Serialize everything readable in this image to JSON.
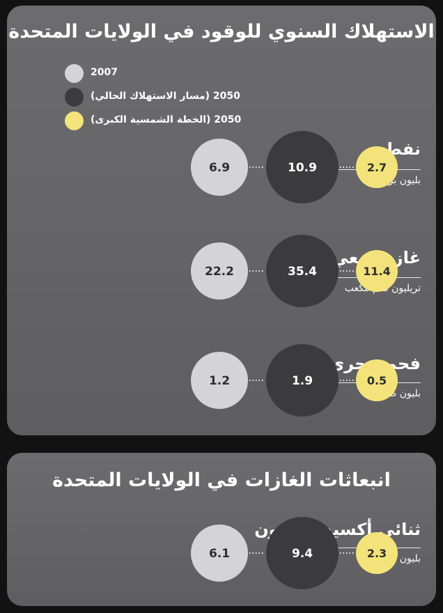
{
  "colors": {
    "year_2007": "#d4d4d6",
    "current_2050": "#3b3a3d",
    "solar_2050": "#f3e37a",
    "dots": "#f0f0f0"
  },
  "consumption_panel": {
    "title": "الاستهلاك السنوي للوقود في الولايات المتحدة",
    "legend": [
      {
        "label": "2007",
        "color_key": "year_2007"
      },
      {
        "label": "2050 (مسار الاستهلاك الحالي)",
        "color_key": "current_2050"
      },
      {
        "label": "2050 (الخطة الشمسية الكبرى)",
        "color_key": "solar_2050"
      }
    ],
    "categories": [
      {
        "name": "نفط",
        "unit": "بليون برميل"
      },
      {
        "name": "غاز طبيعي",
        "unit": "تريليون قدم مكعب"
      },
      {
        "name": "فحم حجري",
        "unit": "بليون طن"
      }
    ]
  },
  "emissions_panel": {
    "title": "انبعاثات الغازات في الولايات المتحدة",
    "categories": [
      {
        "name": "ثنائي أكسيد الكربون",
        "unit": "بليون طن"
      }
    ]
  },
  "chart_data": [
    {
      "type": "bubble",
      "title": "الاستهلاك السنوي للوقود في الولايات المتحدة",
      "categories": [
        "نفط",
        "غاز طبيعي",
        "فحم حجري"
      ],
      "units": [
        "بليون برميل",
        "تريليون قدم مكعب",
        "بليون طن"
      ],
      "series": [
        {
          "name": "2007",
          "values": [
            6.9,
            22.2,
            1.2
          ],
          "color": "#d4d4d6"
        },
        {
          "name": "2050 (مسار الاستهلاك الحالي)",
          "values": [
            10.9,
            35.4,
            1.9
          ],
          "color": "#3b3a3d"
        },
        {
          "name": "2050 (الخطة الشمسية الكبرى)",
          "values": [
            2.7,
            11.4,
            0.5
          ],
          "color": "#f3e37a"
        }
      ],
      "value_labels": [
        [
          "6.9",
          "22.2",
          "1.2"
        ],
        [
          "10.9",
          "35.4",
          "1.9"
        ],
        [
          "2.7",
          "11.4",
          "0.5"
        ]
      ]
    },
    {
      "type": "bubble",
      "title": "انبعاثات الغازات في الولايات المتحدة",
      "categories": [
        "ثنائي أكسيد الكربون"
      ],
      "units": [
        "بليون طن"
      ],
      "series": [
        {
          "name": "2007",
          "values": [
            6.1
          ],
          "color": "#d4d4d6"
        },
        {
          "name": "2050 (مسار الاستهلاك الحالي)",
          "values": [
            9.4
          ],
          "color": "#3b3a3d"
        },
        {
          "name": "2050 (الخطة الشمسية الكبرى)",
          "values": [
            2.3
          ],
          "color": "#f3e37a"
        }
      ],
      "value_labels": [
        [
          "6.1"
        ],
        [
          "9.4"
        ],
        [
          "2.3"
        ]
      ]
    }
  ]
}
